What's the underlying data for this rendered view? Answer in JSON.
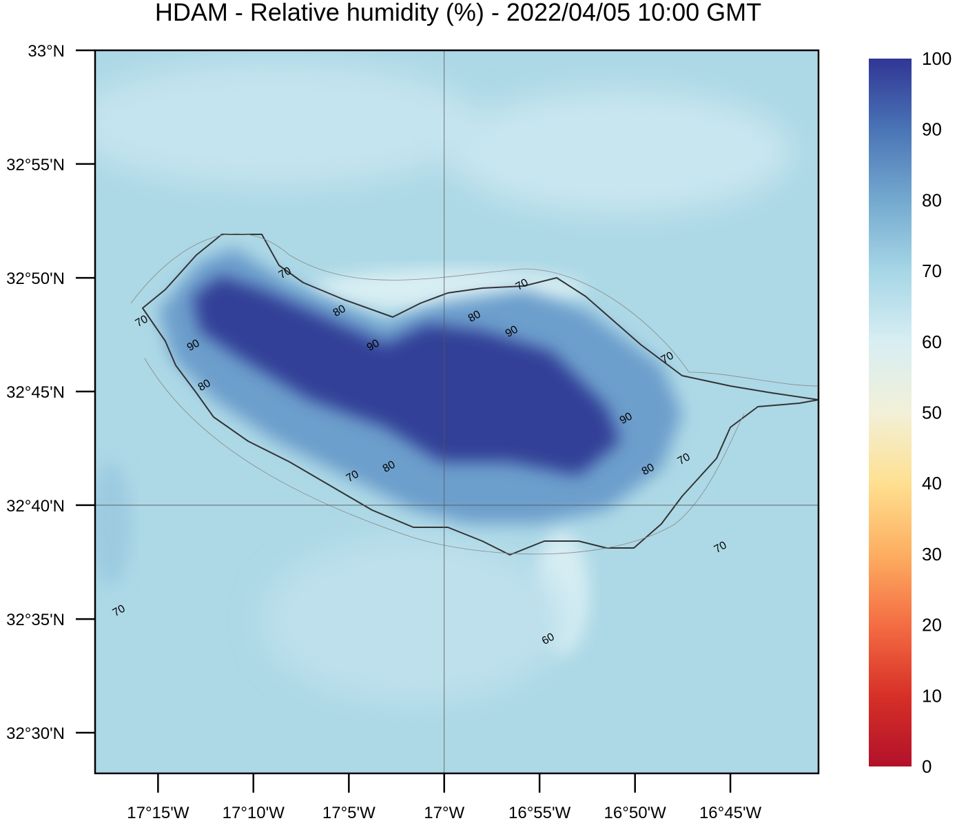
{
  "map": {
    "title": "HDAM - Relative humidity (%)  -  2022/04/05  10:00 GMT",
    "lat_range": [
      32.4702,
      33
    ],
    "lon_range": [
      -17.305,
      -16.673
    ],
    "lat_ticks": [
      {
        "value": 33,
        "label": "33°N"
      },
      {
        "value": 32.9167,
        "label": "32°55'N"
      },
      {
        "value": 32.8333,
        "label": "32°50'N"
      },
      {
        "value": 32.75,
        "label": "32°45'N"
      },
      {
        "value": 32.6667,
        "label": "32°40'N"
      },
      {
        "value": 32.5833,
        "label": "32°35'N"
      },
      {
        "value": 32.5,
        "label": "32°30'N"
      }
    ],
    "lon_ticks": [
      {
        "value": -17.25,
        "label": "17°15'W"
      },
      {
        "value": -17.1667,
        "label": "17°10'W"
      },
      {
        "value": -17.0833,
        "label": "17°5'W"
      },
      {
        "value": -17,
        "label": "17°W"
      },
      {
        "value": -16.9167,
        "label": "16°55'W"
      },
      {
        "value": -16.8333,
        "label": "16°50'W"
      },
      {
        "value": -16.75,
        "label": "16°45'W"
      }
    ],
    "grid_lat": 32.6667,
    "grid_lon": -17,
    "colorbar": {
      "range": [
        0,
        100
      ],
      "ticks": [
        0,
        10,
        20,
        30,
        40,
        50,
        60,
        70,
        80,
        90,
        100
      ],
      "colors": [
        "#b2112a",
        "#d73027",
        "#f46d43",
        "#fdae61",
        "#fee090",
        "#f2f0d8",
        "#d8eef3",
        "#a6d6e6",
        "#74a9cf",
        "#4a74b6",
        "#313695"
      ]
    },
    "contour_labels": [
      70,
      70,
      80,
      90,
      80,
      90,
      80,
      90,
      70,
      70,
      90,
      80,
      70,
      80,
      70,
      70,
      70,
      60
    ]
  }
}
